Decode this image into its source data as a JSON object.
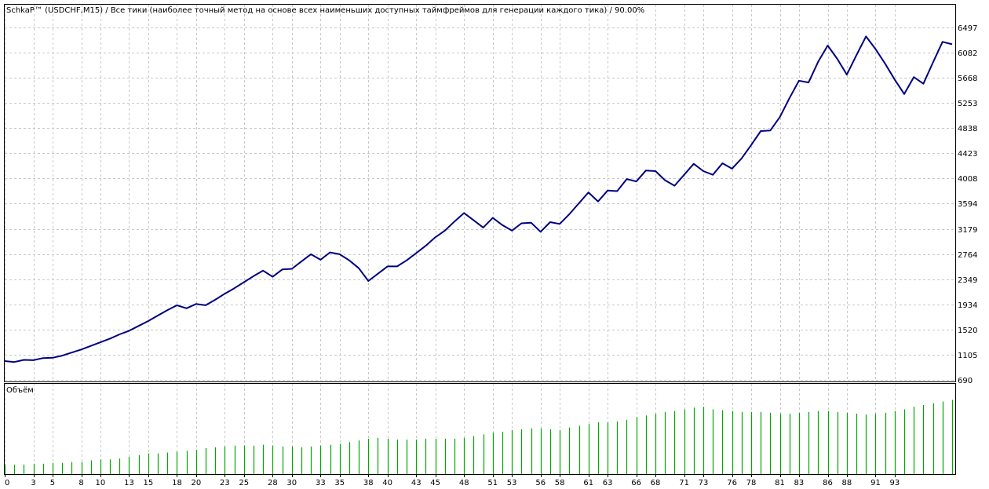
{
  "chart_data": [
    {
      "type": "line",
      "title": "SchkaP™ (USDCHF,M15) / Все тики (наиболее точный метод на основе всех наименьших доступных таймфреймов для генерации каждого тика) / 90.00%",
      "xlabel": "",
      "ylabel": "",
      "grid": true,
      "line_color": "#000080",
      "ylim": [
        690,
        6497
      ],
      "y_ticks": [
        "6497",
        "6082",
        "5668",
        "5253",
        "4838",
        "4423",
        "4008",
        "3594",
        "3179",
        "2764",
        "2349",
        "1934",
        "1520",
        "1105",
        "690"
      ],
      "y_tick_values": [
        6497,
        6082,
        5668,
        5253,
        4838,
        4423,
        4008,
        3594,
        3179,
        2764,
        2349,
        1934,
        1520,
        1105,
        690
      ],
      "series": [
        {
          "values": [
            1000,
            985,
            1020,
            1015,
            1050,
            1055,
            1090,
            1140,
            1190,
            1250,
            1310,
            1370,
            1440,
            1500,
            1580,
            1660,
            1750,
            1840,
            1920,
            1870,
            1940,
            1920,
            2010,
            2110,
            2200,
            2300,
            2400,
            2490,
            2390,
            2510,
            2520,
            2640,
            2760,
            2670,
            2790,
            2760,
            2660,
            2530,
            2320,
            2440,
            2560,
            2560,
            2660,
            2780,
            2900,
            3040,
            3150,
            3300,
            3440,
            3320,
            3200,
            3360,
            3240,
            3150,
            3270,
            3280,
            3130,
            3290,
            3260,
            3420,
            3600,
            3780,
            3630,
            3810,
            3800,
            4000,
            3960,
            4140,
            4130,
            3980,
            3890,
            4070,
            4250,
            4130,
            4070,
            4260,
            4170,
            4340,
            4560,
            4790,
            4800,
            5020,
            5330,
            5620,
            5590,
            5930,
            6200,
            5980,
            5720,
            6040,
            6350,
            6140,
            5900,
            5640,
            5400,
            5680,
            5570,
            5920,
            6260,
            6220
          ]
        }
      ]
    },
    {
      "type": "bar",
      "title": "Объём",
      "grid": true,
      "bar_color": "#00aa00",
      "x_ticks": [
        "0",
        "3",
        "5",
        "8",
        "10",
        "13",
        "15",
        "18",
        "20",
        "23",
        "25",
        "28",
        "30",
        "33",
        "35",
        "38",
        "40",
        "43",
        "45",
        "48",
        "51",
        "53",
        "56",
        "58",
        "61",
        "63",
        "66",
        "68",
        "71",
        "73",
        "76",
        "78",
        "81",
        "83",
        "86",
        "88",
        "91",
        "93"
      ],
      "values": [
        0.11,
        0.11,
        0.11,
        0.12,
        0.12,
        0.13,
        0.13,
        0.14,
        0.14,
        0.16,
        0.17,
        0.17,
        0.18,
        0.2,
        0.22,
        0.24,
        0.24,
        0.25,
        0.26,
        0.27,
        0.28,
        0.3,
        0.31,
        0.32,
        0.33,
        0.33,
        0.33,
        0.34,
        0.33,
        0.32,
        0.32,
        0.31,
        0.32,
        0.33,
        0.34,
        0.35,
        0.37,
        0.39,
        0.41,
        0.42,
        0.41,
        0.4,
        0.4,
        0.4,
        0.41,
        0.41,
        0.41,
        0.41,
        0.42,
        0.44,
        0.46,
        0.48,
        0.49,
        0.51,
        0.52,
        0.53,
        0.53,
        0.52,
        0.51,
        0.54,
        0.56,
        0.58,
        0.6,
        0.6,
        0.61,
        0.63,
        0.66,
        0.68,
        0.7,
        0.72,
        0.73,
        0.75,
        0.77,
        0.78,
        0.75,
        0.74,
        0.73,
        0.72,
        0.72,
        0.72,
        0.71,
        0.7,
        0.7,
        0.71,
        0.72,
        0.73,
        0.73,
        0.72,
        0.71,
        0.7,
        0.69,
        0.7,
        0.71,
        0.73,
        0.75,
        0.78,
        0.8,
        0.82,
        0.84,
        0.86
      ]
    }
  ]
}
